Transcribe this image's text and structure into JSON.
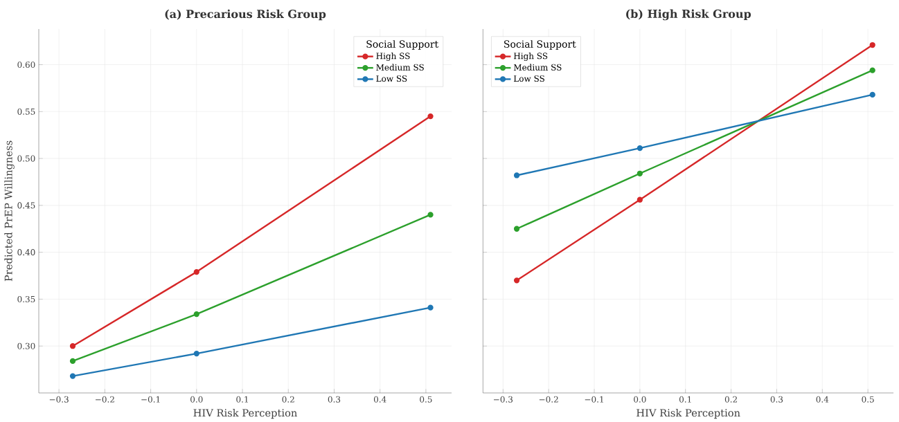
{
  "chart_data": [
    {
      "type": "line",
      "title": "(a) Precarious Risk Group",
      "xlabel": "HIV Risk Perception",
      "ylabel": "Predicted PrEP Willingness",
      "legend_title": "Social Support",
      "x": [
        -0.27,
        0,
        0.51
      ],
      "series": [
        {
          "name": "High SS",
          "color": "#d62728",
          "values": [
            0.3,
            0.379,
            0.545
          ]
        },
        {
          "name": "Medium SS",
          "color": "#2ca02c",
          "values": [
            0.284,
            0.334,
            0.44
          ]
        },
        {
          "name": "Low SS",
          "color": "#1f77b4",
          "values": [
            0.268,
            0.292,
            0.341
          ]
        }
      ],
      "xlim": [
        -0.344,
        0.556
      ],
      "ylim": [
        0.25,
        0.638
      ],
      "xticks": [
        {
          "value": -0.3,
          "label": "−0.3"
        },
        {
          "value": -0.2,
          "label": "−0.2"
        },
        {
          "value": -0.1,
          "label": "−0.1"
        },
        {
          "value": 0,
          "label": "0.0"
        },
        {
          "value": 0.1,
          "label": "0.1"
        },
        {
          "value": 0.2,
          "label": "0.2"
        },
        {
          "value": 0.3,
          "label": "0.3"
        },
        {
          "value": 0.4,
          "label": "0.4"
        },
        {
          "value": 0.5,
          "label": "0.5"
        }
      ],
      "yticks": [
        {
          "value": 0.3,
          "label": "0.30"
        },
        {
          "value": 0.35,
          "label": "0.35"
        },
        {
          "value": 0.4,
          "label": "0.40"
        },
        {
          "value": 0.45,
          "label": "0.45"
        },
        {
          "value": 0.5,
          "label": "0.50"
        },
        {
          "value": 0.55,
          "label": "0.55"
        },
        {
          "value": 0.6,
          "label": "0.60"
        }
      ],
      "grid": true,
      "legend": "top right",
      "marker": "circle",
      "line_style": "solid"
    },
    {
      "type": "line",
      "title": "(b) High Risk Group",
      "xlabel": "HIV Risk Perception",
      "legend_title": "Social Support",
      "x": [
        -0.27,
        0,
        0.51
      ],
      "series": [
        {
          "name": "High SS",
          "color": "#d62728",
          "values": [
            0.37,
            0.456,
            0.621
          ]
        },
        {
          "name": "Medium SS",
          "color": "#2ca02c",
          "values": [
            0.425,
            0.484,
            0.594
          ]
        },
        {
          "name": "Low SS",
          "color": "#1f77b4",
          "values": [
            0.482,
            0.511,
            0.568
          ]
        }
      ],
      "xlim": [
        -0.344,
        0.556
      ],
      "ylim": [
        0.25,
        0.638
      ],
      "xticks": [
        {
          "value": -0.3,
          "label": "−0.3"
        },
        {
          "value": -0.2,
          "label": "−0.2"
        },
        {
          "value": -0.1,
          "label": "−0.1"
        },
        {
          "value": 0,
          "label": "0.0"
        },
        {
          "value": 0.1,
          "label": "0.1"
        },
        {
          "value": 0.2,
          "label": "0.2"
        },
        {
          "value": 0.3,
          "label": "0.3"
        },
        {
          "value": 0.4,
          "label": "0.4"
        },
        {
          "value": 0.5,
          "label": "0.5"
        }
      ],
      "yticks": [
        0.3,
        0.35,
        0.4,
        0.45,
        0.5,
        0.55,
        0.6
      ],
      "tick_labels": "x",
      "grid": true,
      "legend": "top left",
      "marker": "circle",
      "line_style": "solid"
    }
  ]
}
